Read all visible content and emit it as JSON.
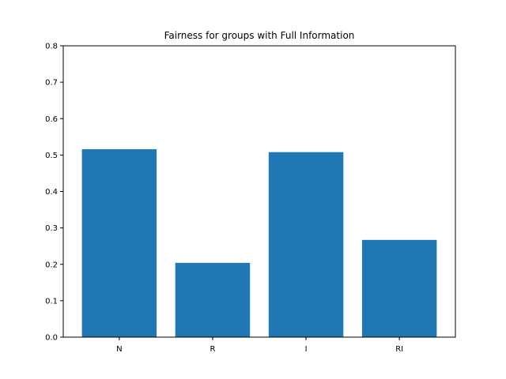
{
  "chart_data": {
    "type": "bar",
    "title": "Fairness for groups with Full Information",
    "xlabel": "",
    "ylabel": "",
    "categories": [
      "N",
      "R",
      "I",
      "RI"
    ],
    "values": [
      0.516,
      0.204,
      0.508,
      0.267
    ],
    "ylim": [
      0,
      0.8
    ],
    "yticks": [
      "0.0",
      "0.1",
      "0.2",
      "0.3",
      "0.4",
      "0.5",
      "0.6",
      "0.7",
      "0.8"
    ],
    "bar_color": "#1f77b4",
    "grid": false,
    "legend": "none"
  }
}
